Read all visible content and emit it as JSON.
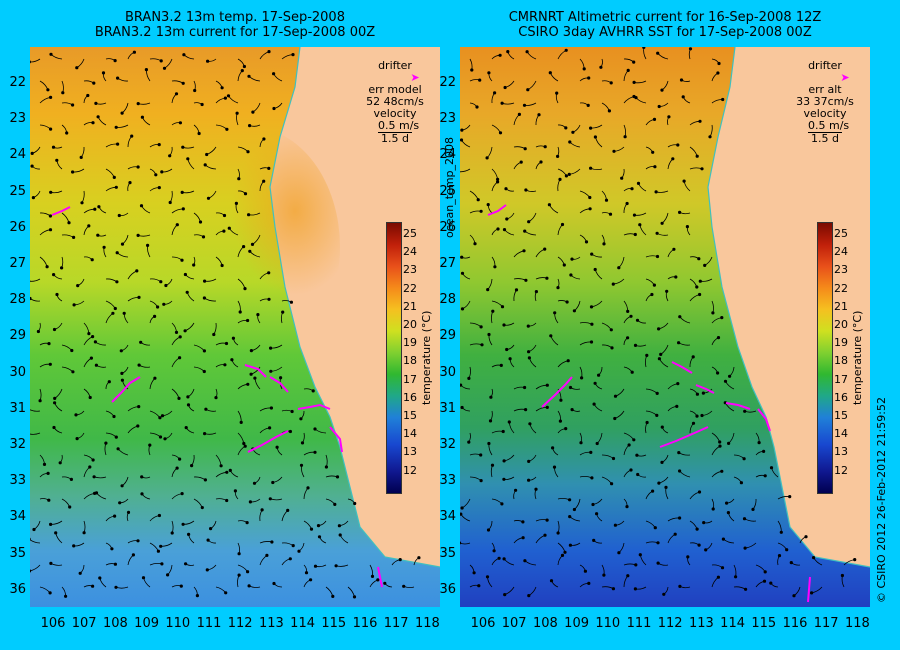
{
  "left_panel": {
    "title_line1": "BRAN3.2 13m temp. 17-Sep-2008",
    "title_line2": "BRAN3.2 13m current for 17-Sep-2008 00Z",
    "legend": {
      "drifter": "drifter",
      "err_label": "err model",
      "err_value": "52 48cm/s",
      "velocity": "velocity",
      "velocity_scale": "0.5 m/s",
      "duration": "1.5 d"
    }
  },
  "right_panel": {
    "title_line1": "CMRNRT Altimetric current for 16-Sep-2008 12Z",
    "title_line2": "CSIRO 3day AVHRR SST for 17-Sep-2008 00Z",
    "legend": {
      "drifter": "drifter",
      "err_label": "err alt",
      "err_value": "33 37cm/s",
      "velocity": "velocity",
      "velocity_scale": "0.5 m/s",
      "duration": "1.5 d"
    }
  },
  "latitudes": [
    "22",
    "23",
    "24",
    "25",
    "26",
    "27",
    "28",
    "29",
    "30",
    "31",
    "32",
    "33",
    "34",
    "35",
    "36"
  ],
  "longitudes": [
    "106",
    "107",
    "108",
    "109",
    "110",
    "111",
    "112",
    "113",
    "114",
    "115",
    "116",
    "117",
    "118"
  ],
  "colorbar": {
    "ticks": [
      "25",
      "24",
      "23",
      "22",
      "21",
      "20",
      "19",
      "18",
      "17",
      "16",
      "15",
      "14",
      "13",
      "12"
    ],
    "label": "temperature (°C)"
  },
  "side_text_left": "ocean_temp_2008",
  "side_text_right": "© CSIRO 2012   26-Feb-2012 21:59:52",
  "colors": {
    "background": "#00ccff",
    "land": "#f9c79c",
    "drifter": "#ff00ff",
    "coast_line": "#40c0c0"
  }
}
